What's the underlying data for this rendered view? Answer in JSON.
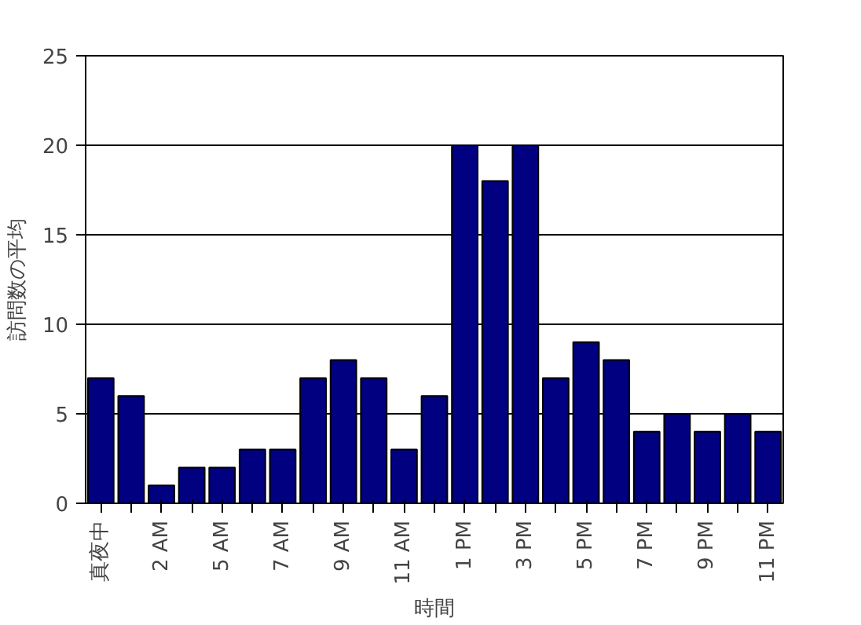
{
  "chart_data": {
    "type": "bar",
    "xlabel": "時間",
    "ylabel": "訪問数の平均",
    "categories": [
      "真夜中",
      null,
      "2 AM",
      null,
      "5 AM",
      null,
      "7 AM",
      null,
      "9 AM",
      null,
      "11 AM",
      null,
      "1 PM",
      null,
      "3 PM",
      null,
      "5 PM",
      null,
      "7 PM",
      null,
      "9 PM",
      null,
      "11 PM"
    ],
    "values": [
      7,
      6,
      1,
      2,
      2,
      3,
      3,
      7,
      8,
      7,
      3,
      6,
      20,
      18,
      20,
      7,
      9,
      8,
      4,
      5,
      4,
      5,
      4
    ],
    "color": "#000080",
    "ylim": [
      0,
      25
    ],
    "yticks": [
      0,
      5,
      10,
      15,
      20,
      25
    ],
    "grid": "y"
  }
}
